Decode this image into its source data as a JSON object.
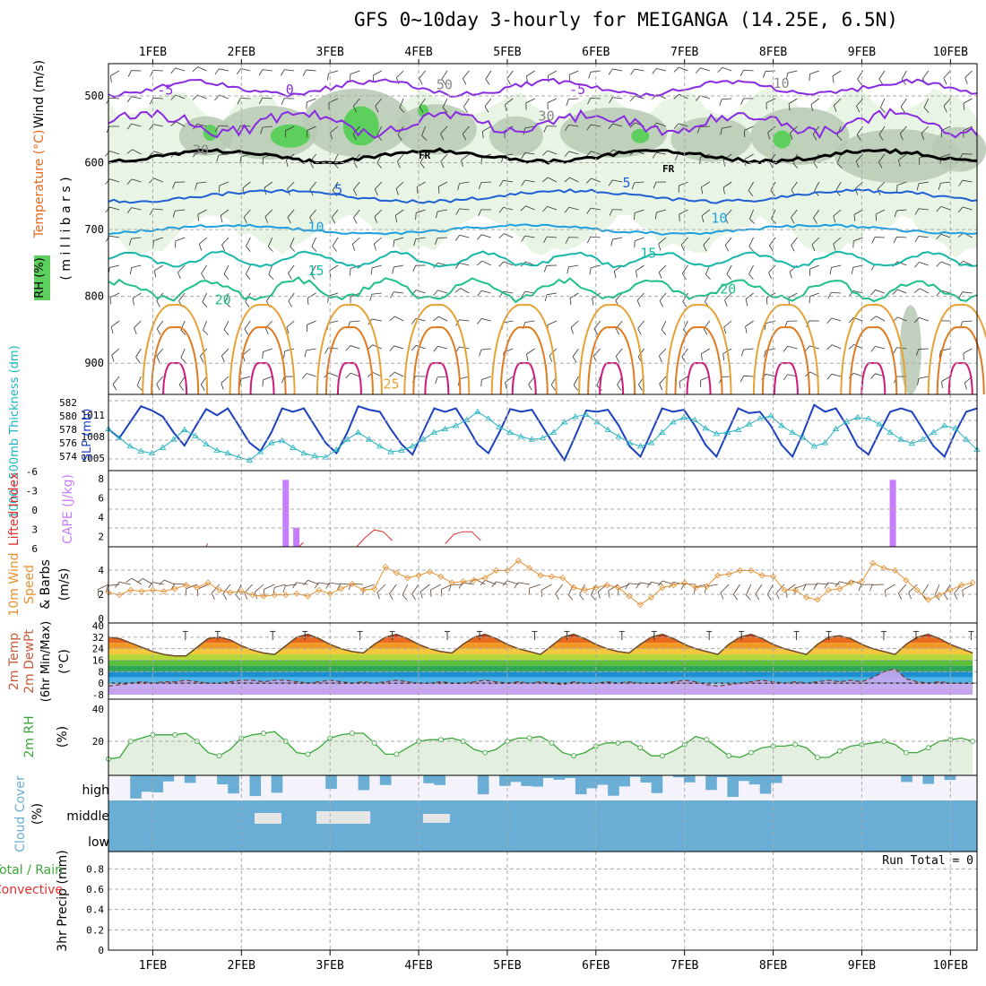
{
  "title": "GFS 0~10day 3-hourly for MEIGANGA (14.25E, 6.5N)",
  "colors": {
    "rh_light": "#e8f5e4",
    "rh_mid": "#b7c9b4",
    "rh_dark": "#8fa88c",
    "rh_green": "#5ccf5c",
    "temp_purple": "#8a2be2",
    "temp_blue": "#1f5fd6",
    "temp_lightblue": "#1e9fe0",
    "temp_teal": "#16b7a8",
    "temp_green": "#1fbf8a",
    "temp_orange": "#e6a235",
    "temp_darkorange": "#e07a1f",
    "temp_magenta": "#d0187a",
    "cloud": "#6aaed6",
    "cloud_bg": "#f4f2fa",
    "cape": "#c77dff",
    "lifted": "#e03030",
    "slp": "#1a3fc0",
    "thickness": "#20b2c0",
    "wind10m": "#e89030",
    "rh2m": "#3aa83a"
  },
  "top_axis": {
    "dates": [
      "1FEB",
      "2FEB",
      "3FEB",
      "4FEB",
      "5FEB",
      "6FEB",
      "7FEB",
      "8FEB",
      "9FEB",
      "10FEB"
    ]
  },
  "bottom_axis": {
    "dates": [
      "1FEB",
      "2FEB",
      "3FEB",
      "4FEB",
      "5FEB",
      "6FEB",
      "7FEB",
      "8FEB",
      "9FEB",
      "10FEB"
    ]
  },
  "panels": {
    "upper_air": {
      "ylabel_wind": "Wind (m/s)",
      "ylabel_temp": "Temperature (°C)",
      "ylabel_rh": "RH (%)",
      "ylabel_mb": "( m i l l i b a r s )",
      "yticks": [
        "500",
        "600",
        "700",
        "800",
        "900"
      ],
      "contour_labels": [
        "-5",
        "0",
        "-5",
        "5",
        "10",
        "15",
        "20",
        "5",
        "10",
        "15",
        "20",
        "25",
        "FR",
        "FR",
        "30",
        "30",
        "30",
        "50",
        "10",
        "10"
      ]
    },
    "slp_thickness": {
      "ylabel_left": "1000~500mb Thickness (dm)",
      "ylabel_right": "SLP (mb)",
      "yticks_thickness": [
        "582",
        "580",
        "578",
        "576",
        "574"
      ],
      "yticks_slp": [
        "1011",
        "1008",
        "1005"
      ]
    },
    "cape_li": {
      "ylabel_left": "Lifted Index",
      "ylabel_right": "CAPE (J/kg)",
      "yticks_li": [
        "-6",
        "-3",
        "0",
        "3",
        "6"
      ],
      "yticks_cape": [
        "8",
        "6",
        "4",
        "2"
      ]
    },
    "wind10m": {
      "ylabel_1": "10m Wind",
      "ylabel_2": "Speed",
      "ylabel_3": "& Barbs",
      "ylabel_units": "(m/s)",
      "yticks": [
        "4",
        "2",
        "0"
      ]
    },
    "temp2m": {
      "ylabel_1": "2m Temp",
      "ylabel_2": "2m DewPt",
      "ylabel_3": "(6hr Min/Max)",
      "ylabel_units": "(°C)",
      "yticks": [
        "40",
        "32",
        "24",
        "16",
        "8",
        "0",
        "-8"
      ]
    },
    "rh2m": {
      "ylabel": "2m RH",
      "ylabel_units": "(%)",
      "yticks": [
        "40",
        "20"
      ]
    },
    "cloud": {
      "ylabel": "Cloud Cover",
      "ylabel_units": "(%)",
      "levels": [
        "high",
        "middle",
        "low"
      ]
    },
    "precip": {
      "ylabel_1": "Total / Rain",
      "ylabel_2": "Convective",
      "ylabel_3": "3hr Precip (mm)",
      "run_total": "Run Total = 0",
      "yticks": [
        "0.8",
        "0.6",
        "0.4",
        "0.2",
        "0"
      ]
    }
  },
  "chart_data": [
    {
      "type": "line",
      "title": "SLP (mb) and 1000~500mb Thickness (dm)",
      "series": [
        {
          "name": "SLP (mb)",
          "axis": "right",
          "ylim": [
            1003,
            1013
          ],
          "values": [
            1008.5,
            1007.2,
            1009.5,
            1011.8,
            1011.2,
            1010.3,
            1008.0,
            1006.1,
            1008.8,
            1011.4,
            1010.5,
            1011.5,
            1009.0,
            1006.5,
            1005.3,
            1008.0,
            1011.5,
            1011.0,
            1011.5,
            1009.0,
            1006.5,
            1005.0,
            1008.0,
            1011.8,
            1011.3,
            1011.0,
            1008.5,
            1006.3,
            1004.8,
            1008.2,
            1011.5,
            1011.0,
            1011.5,
            1009.0,
            1006.3,
            1005.0,
            1008.0,
            1011.4,
            1011.0,
            1011.3,
            1008.8,
            1006.3,
            1004.0,
            1007.5,
            1011.2,
            1011.0,
            1011.3,
            1009.0,
            1006.0,
            1004.5,
            1008.0,
            1011.5,
            1011.0,
            1011.3,
            1009.0,
            1006.2,
            1004.5,
            1008.0,
            1011.5,
            1010.8,
            1011.0,
            1009.0,
            1006.2,
            1004.5,
            1008.0,
            1012.0,
            1011.0,
            1011.5,
            1009.0,
            1006.0,
            1004.8,
            1008.0,
            1011.0,
            1011.5,
            1011.0,
            1008.5,
            1006.0,
            1004.5,
            1008.0,
            1011.0,
            1011.5
          ]
        },
        {
          "name": "1000~500mb Thickness (dm)",
          "axis": "left",
          "ylim": [
            573,
            583
          ],
          "values": [
            578.5,
            577.2,
            576.0,
            575.3,
            575.0,
            575.8,
            577.0,
            578.4,
            577.5,
            576.3,
            575.4,
            575.0,
            574.4,
            574.0,
            575.2,
            576.5,
            576.8,
            575.8,
            575.0,
            574.6,
            574.4,
            575.5,
            577.0,
            578.0,
            577.0,
            576.0,
            575.2,
            575.4,
            576.0,
            577.0,
            578.0,
            578.5,
            579.0,
            579.8,
            581.0,
            580.0,
            578.8,
            578.0,
            577.4,
            577.0,
            577.2,
            578.0,
            579.5,
            580.3,
            580.6,
            579.5,
            578.4,
            577.4,
            576.5,
            576.0,
            576.5,
            578.0,
            579.5,
            580.2,
            579.8,
            578.6,
            577.8,
            578.0,
            578.4,
            579.2,
            580.0,
            580.4,
            579.0,
            578.0,
            577.2,
            576.0,
            576.5,
            578.5,
            579.6,
            580.2,
            580.0,
            579.2,
            578.0,
            577.0,
            576.4,
            577.0,
            578.0,
            579.0,
            578.6,
            577.0,
            575.5
          ]
        }
      ],
      "xlim": [
        0.5,
        10.3
      ]
    },
    {
      "type": "bar",
      "title": "CAPE (J/kg)",
      "x": [
        2.5,
        2.62,
        9.35
      ],
      "values": [
        8.0,
        3.0,
        8.0
      ],
      "ylim": [
        1,
        8.5
      ]
    },
    {
      "type": "line",
      "title": "Lifted Index",
      "x": [
        1.6,
        1.62,
        2.65,
        2.7,
        3.3,
        3.4,
        3.5,
        3.6,
        3.7,
        4.3,
        4.4,
        4.5,
        4.6,
        4.7
      ],
      "values": [
        6.0,
        5.5,
        6.0,
        5.3,
        6.0,
        4.5,
        3.3,
        3.6,
        5.0,
        5.5,
        4.0,
        3.6,
        3.6,
        5.0
      ],
      "ylim": [
        6,
        -6
      ]
    },
    {
      "type": "line",
      "title": "10m Wind Speed (m/s)",
      "x_start": 0.5,
      "x_step": 0.125,
      "values": [
        2.2,
        2.0,
        2.4,
        2.3,
        2.4,
        2.3,
        2.5,
        2.8,
        2.6,
        3.0,
        2.4,
        2.2,
        2.3,
        2.0,
        1.9,
        2.0,
        2.0,
        2.1,
        1.9,
        2.4,
        2.1,
        2.5,
        2.9,
        2.4,
        2.5,
        4.3,
        3.8,
        3.4,
        3.6,
        3.9,
        3.5,
        3.0,
        3.1,
        3.2,
        3.4,
        4.0,
        4.0,
        4.8,
        4.2,
        3.6,
        3.5,
        3.4,
        2.6,
        2.4,
        2.6,
        2.8,
        2.6,
        1.9,
        1.2,
        1.8,
        2.6,
        2.8,
        3.0,
        2.6,
        2.7,
        3.6,
        3.7,
        4.0,
        4.0,
        3.6,
        3.5,
        2.4,
        2.4,
        1.8,
        1.6,
        2.4,
        2.5,
        3.0,
        3.1,
        4.6,
        4.2,
        4.0,
        3.2,
        2.4,
        1.6,
        2.0,
        2.4,
        2.8,
        3.0,
        2.6,
        3.2,
        2.9,
        2.0,
        1.8,
        1.7,
        2.5,
        2.5,
        1.9,
        2.2,
        1.5,
        0.3,
        0.9,
        1.0,
        1.3,
        3.9,
        3.9,
        3.8,
        2.8,
        2.6,
        2.5,
        2.4,
        2.7
      ],
      "ylim": [
        0,
        5.5
      ]
    },
    {
      "type": "area",
      "title": "2m Temp and DewPt (°C)",
      "x_start": 0.5,
      "x_step": 0.125,
      "series": [
        {
          "name": "2m Temp",
          "values": [
            32,
            31,
            28,
            25,
            22,
            20,
            19,
            19,
            25,
            31,
            32,
            30,
            26,
            23,
            21,
            20,
            26,
            32,
            34,
            31,
            27,
            24,
            22,
            21,
            27,
            32,
            34,
            31,
            27,
            24,
            22,
            21,
            27,
            32,
            34,
            31,
            27,
            24,
            22,
            20,
            26,
            32,
            34,
            31,
            27,
            24,
            22,
            21,
            27,
            32,
            34,
            31,
            27,
            24,
            22,
            20,
            27,
            32,
            34,
            31,
            27,
            24,
            22,
            20,
            27,
            32,
            33,
            31,
            27,
            24,
            22,
            20,
            27,
            32,
            34,
            31,
            27,
            24,
            21,
            19,
            19
          ]
        },
        {
          "name": "2m DewPt",
          "values": [
            -2,
            -1,
            0,
            1,
            0,
            1,
            1,
            2,
            1,
            0,
            0,
            1,
            2,
            2,
            1,
            2,
            2,
            1,
            0,
            1,
            2,
            1,
            0,
            1,
            0,
            1,
            2,
            1,
            0,
            0,
            1,
            0,
            0,
            1,
            2,
            1,
            0,
            1,
            0,
            1,
            0,
            -1,
            1,
            0,
            0,
            1,
            0,
            1,
            0,
            0,
            0,
            1,
            2,
            1,
            -1,
            -2,
            -1,
            0,
            1,
            2,
            1,
            0,
            1,
            0,
            1,
            2,
            1,
            2,
            1,
            4,
            8,
            10,
            3,
            1,
            0,
            1,
            0,
            0,
            0,
            0,
            0
          ]
        }
      ],
      "ylim": [
        -8,
        40
      ]
    },
    {
      "type": "area",
      "title": "2m RH (%)",
      "x_start": 0.5,
      "x_step": 0.125,
      "values": [
        9,
        10,
        20,
        22,
        24,
        24,
        24,
        25,
        20,
        13,
        11,
        15,
        22,
        24,
        25,
        26,
        20,
        13,
        12,
        16,
        22,
        24,
        25,
        25,
        19,
        12,
        12,
        16,
        20,
        21,
        21,
        22,
        20,
        15,
        13,
        15,
        20,
        22,
        22,
        23,
        19,
        13,
        11,
        13,
        17,
        19,
        19,
        20,
        16,
        11,
        11,
        14,
        18,
        23,
        21,
        16,
        11,
        10,
        13,
        16,
        17,
        17,
        18,
        16,
        10,
        10,
        14,
        17,
        18,
        19,
        20,
        18,
        13,
        13,
        16,
        20,
        21,
        22,
        20,
        23,
        31,
        40,
        32,
        18,
        16,
        16,
        19,
        20,
        21,
        22,
        24
      ],
      "ylim": [
        0,
        45
      ]
    },
    {
      "type": "heatmap",
      "title": "Cloud Cover (%)",
      "rows": [
        "high",
        "middle",
        "low"
      ],
      "note": "low/middle layers mostly 100% throughout; high layer intermittent"
    },
    {
      "type": "bar",
      "title": "3hr Precip (mm)",
      "values": [],
      "ylim": [
        0,
        0.9
      ],
      "run_total": 0
    }
  ]
}
